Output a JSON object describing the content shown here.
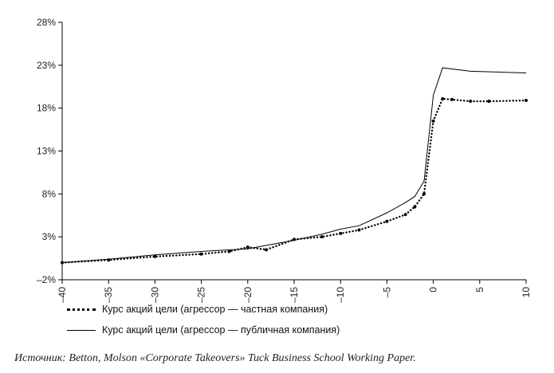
{
  "chart_data": {
    "type": "line",
    "title": "",
    "xlabel": "",
    "ylabel": "",
    "xlim": [
      -40,
      10
    ],
    "ylim": [
      -2,
      28
    ],
    "y_ticks": [
      -2,
      3,
      8,
      13,
      18,
      23,
      28
    ],
    "y_tick_labels": [
      "–2%",
      "3%",
      "8%",
      "13%",
      "18%",
      "23%",
      "28%"
    ],
    "x_ticks": [
      -40,
      -35,
      -30,
      -25,
      -20,
      -15,
      -10,
      -5,
      0,
      5,
      10
    ],
    "x_tick_labels": [
      "–40",
      "–35",
      "–30",
      "–25",
      "–20",
      "–15",
      "–10",
      "–5",
      "0",
      "5",
      "10"
    ],
    "grid": false,
    "legend_position": "bottom-left",
    "series": [
      {
        "name": "Курс акций цели (агрессор — частная компания)",
        "style": "dotted",
        "color": "#000000",
        "x": [
          -40,
          -35,
          -30,
          -25,
          -22,
          -20,
          -18,
          -15,
          -12,
          -10,
          -8,
          -5,
          -3,
          -2,
          -1,
          0,
          1,
          2,
          4,
          6,
          10
        ],
        "y": [
          0.0,
          0.3,
          0.7,
          1.0,
          1.3,
          1.8,
          1.5,
          2.7,
          3.0,
          3.4,
          3.8,
          4.8,
          5.6,
          6.5,
          8.0,
          16.5,
          19.1,
          19.0,
          18.8,
          18.8,
          18.9
        ]
      },
      {
        "name": "Курс акций цели (агрессор — публичная компания)",
        "style": "solid",
        "color": "#000000",
        "x": [
          -40,
          -35,
          -30,
          -25,
          -20,
          -18,
          -15,
          -12,
          -10,
          -8,
          -5,
          -3,
          -2,
          -1,
          0,
          1,
          4,
          10
        ],
        "y": [
          0.0,
          0.4,
          0.9,
          1.3,
          1.6,
          2.0,
          2.6,
          3.3,
          3.9,
          4.3,
          5.8,
          7.0,
          7.7,
          9.5,
          19.5,
          22.7,
          22.3,
          22.1
        ]
      }
    ]
  },
  "source": "Источник: Betton, Molson «Corporate Takeovers» Tuck Business School Working Paper."
}
